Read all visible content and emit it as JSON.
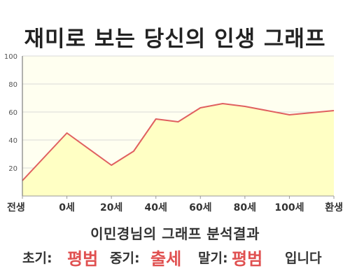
{
  "chart_data": {
    "type": "area",
    "title": "재미로 보는 당신의 인생 그래프",
    "x": [
      -20,
      0,
      20,
      30,
      40,
      50,
      60,
      70,
      80,
      100,
      120
    ],
    "values": [
      11,
      45,
      22,
      32,
      55,
      53,
      63,
      66,
      64,
      58,
      61
    ],
    "x_tick_labels": [
      "전생",
      "0세",
      "20세",
      "40세",
      "60세",
      "80세",
      "100세",
      "환생"
    ],
    "x_tick_positions": [
      -20,
      0,
      20,
      40,
      60,
      80,
      100,
      120
    ],
    "y_ticks": [
      20,
      40,
      60,
      80,
      100
    ],
    "xlim": [
      -20,
      120
    ],
    "ylim": [
      0,
      100
    ],
    "grid": true,
    "colors": {
      "fill": "#ffffc4",
      "line": "#e06060",
      "plot_bg": "#fffff0",
      "grid": "#d8d8d8"
    }
  },
  "result": {
    "subtitle": "이민경님의 그래프 분석결과",
    "early_label": "초기:",
    "early_value": "평범",
    "middle_label": "중기:",
    "middle_value": "출세",
    "late_label": "말기:",
    "late_value": "평범",
    "ending": "입니다"
  }
}
